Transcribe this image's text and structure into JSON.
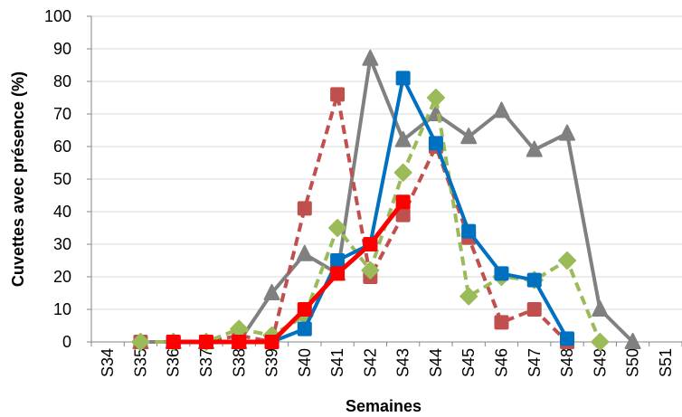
{
  "chart_data": {
    "type": "line",
    "xlabel": "Semaines",
    "ylabel": "Cuvettes avec présence (%)",
    "categories": [
      "S34",
      "S35",
      "S36",
      "S37",
      "S38",
      "S39",
      "S40",
      "S41",
      "S42",
      "S43",
      "S44",
      "S45",
      "S46",
      "S47",
      "S48",
      "S49",
      "S50",
      "S51"
    ],
    "ylim": [
      0,
      100
    ],
    "yticks": [
      0,
      10,
      20,
      30,
      40,
      50,
      60,
      70,
      80,
      90,
      100
    ],
    "grid": "horizontal",
    "legend": "none",
    "series": [
      {
        "color": "#808080",
        "dashed": false,
        "marker": "triangle",
        "values": [
          null,
          0,
          0,
          0,
          0,
          15,
          27,
          21,
          87,
          62,
          70,
          63,
          71,
          59,
          64,
          10,
          0,
          null
        ]
      },
      {
        "color": "#C0504D",
        "dashed": true,
        "marker": "square",
        "values": [
          null,
          0,
          0,
          0,
          2,
          0,
          41,
          76,
          20,
          39,
          60,
          32,
          6,
          10,
          0,
          null,
          null,
          null
        ]
      },
      {
        "color": "#9BBB59",
        "dashed": true,
        "marker": "diamond",
        "values": [
          null,
          0,
          0,
          0,
          4,
          2,
          8,
          35,
          22,
          52,
          75,
          14,
          20,
          19,
          25,
          0,
          null,
          null
        ]
      },
      {
        "color": "#0070C0",
        "dashed": false,
        "marker": "square",
        "values": [
          null,
          null,
          0,
          0,
          0,
          0,
          4,
          25,
          30,
          81,
          61,
          34,
          21,
          19,
          1,
          null,
          null,
          null
        ]
      },
      {
        "color": "#FF0000",
        "dashed": false,
        "marker": "square",
        "bold": true,
        "values": [
          null,
          null,
          0,
          0,
          0,
          0,
          10,
          21,
          30,
          43,
          null,
          null,
          null,
          null,
          null,
          null,
          null,
          null
        ]
      }
    ]
  }
}
